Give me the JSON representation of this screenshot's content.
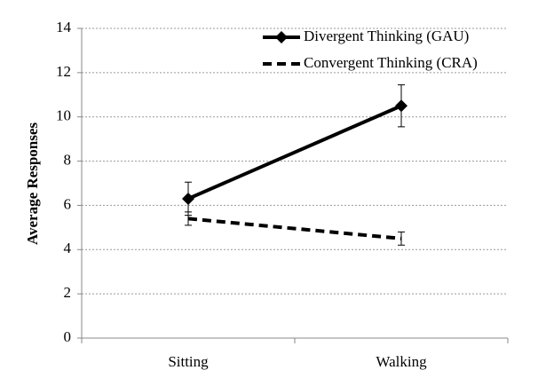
{
  "chart_data": {
    "type": "line",
    "y_label": "Average Responses",
    "categories": [
      "Sitting",
      "Walking"
    ],
    "series": [
      {
        "name": "Divergent Thinking (GAU)",
        "color": "#000000",
        "linestyle": "solid",
        "marker": "diamond",
        "values": [
          6.3,
          10.5
        ],
        "errors": [
          0.75,
          0.95
        ]
      },
      {
        "name": "Convergent Thinking (CRA)",
        "color": "#000000",
        "linestyle": "dashed",
        "marker": "none",
        "values": [
          5.4,
          4.5
        ],
        "errors": [
          0.3,
          0.3
        ]
      }
    ],
    "ylim": [
      0,
      14
    ],
    "yticks": [
      0,
      2,
      4,
      6,
      8,
      10,
      12,
      14
    ],
    "grid": true,
    "legend": "upper right"
  }
}
